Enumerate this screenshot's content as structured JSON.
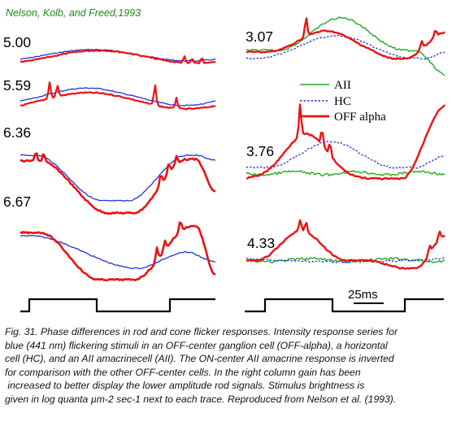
{
  "figure": {
    "citation": "Nelson, Kolb, and Freed,1993",
    "colors": {
      "AII": "#22aa22",
      "HC": "#2233dd",
      "OFF_alpha": "#ee1111",
      "citation": "#1a8a1a"
    },
    "legend": {
      "AII": "AII",
      "HC": "HC",
      "OFF_alpha": "OFF alpha"
    },
    "scale_bar": "25ms",
    "left_traces": [
      {
        "intensity": "5.00"
      },
      {
        "intensity": "5.59"
      },
      {
        "intensity": "6.36"
      },
      {
        "intensity": "6.67"
      }
    ],
    "right_traces": [
      {
        "intensity": "3.07"
      },
      {
        "intensity": "3.76"
      },
      {
        "intensity": "4.33"
      }
    ]
  },
  "caption": {
    "lines": [
      "Fig. 31. Phase differences in rod and cone flicker responses. Intensity response series for",
      "blue (441 nm) flickering stimuli in an OFF-center ganglion cell (OFF-alpha), a horizontal",
      "cell (HC), and an AII amacrinecell (AII). The ON-center AII amacrine response is inverted",
      "for comparison with the other OFF-center cells. In the right column gain has been",
      " increased to better display the lower amplitude rod signals. Stimulus brightness is",
      "given in log quanta µm-2 sec-1 next to each trace. Reproduced from Nelson et al. (1993)."
    ]
  }
}
